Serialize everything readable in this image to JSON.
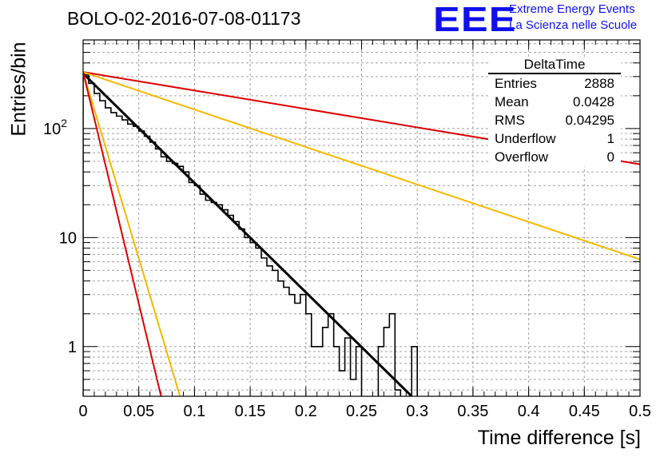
{
  "title": "BOLO-02-2016-07-08-01173",
  "logo": {
    "mark": "EEE",
    "line1": "Extreme Energy Events",
    "line2": "La Scienza nelle Scuole"
  },
  "stats": {
    "name": "DeltaTime",
    "rows": [
      {
        "label": "Entries",
        "value": "2888"
      },
      {
        "label": "Mean",
        "value": "0.0428"
      },
      {
        "label": "RMS",
        "value": "0.04295"
      },
      {
        "label": "Underflow",
        "value": "1"
      },
      {
        "label": "Overflow",
        "value": "0"
      }
    ]
  },
  "colors": {
    "histogram": "#000000",
    "fit": "#000000",
    "slow_exp": "#dd0000",
    "fast_exp": "#dd0000",
    "mid_exp": "#f5b800",
    "mid_fast_exp": "#f5b800",
    "grid": "#a0a0a0"
  },
  "chart_data": {
    "type": "line",
    "xlabel": "Time difference [s]",
    "ylabel": "Entries/bin",
    "xlim": [
      0,
      0.5
    ],
    "ylim": [
      0.35,
      650
    ],
    "yscale": "log",
    "grid": true,
    "x_ticks": [
      "0",
      "0.05",
      "0.1",
      "0.15",
      "0.2",
      "0.25",
      "0.3",
      "0.35",
      "0.4",
      "0.45",
      "0.5"
    ],
    "y_ticks": [
      "1",
      "10",
      "10^2"
    ],
    "histogram": {
      "bin_width": 0.005,
      "counts": [
        310,
        260,
        210,
        180,
        155,
        140,
        130,
        120,
        110,
        105,
        95,
        85,
        75,
        65,
        55,
        50,
        48,
        45,
        40,
        32,
        30,
        25,
        22,
        21,
        20,
        18,
        16,
        14,
        12,
        10,
        9,
        8,
        6.5,
        5.5,
        5,
        4,
        3.5,
        3,
        2.5,
        3,
        2,
        1,
        1,
        1.5,
        2,
        1,
        0.6,
        1.2,
        0.5,
        1,
        0.3,
        0.3,
        0.3,
        1,
        1.5,
        2,
        0.4,
        0.3,
        0.3,
        1,
        0.3,
        0.3,
        0.3,
        0.3,
        0.3
      ]
    },
    "series": [
      {
        "style": "black",
        "x": [
          0,
          0.295
        ],
        "y": [
          320,
          0.35
        ]
      },
      {
        "style": "red",
        "x": [
          0,
          0.5
        ],
        "y": [
          330,
          47
        ]
      },
      {
        "style": "orange",
        "x": [
          0,
          0.5
        ],
        "y": [
          330,
          6.3
        ]
      },
      {
        "style": "orange",
        "x": [
          0,
          0.087
        ],
        "y": [
          330,
          0.35
        ]
      },
      {
        "style": "red",
        "x": [
          0,
          0.07
        ],
        "y": [
          330,
          0.35
        ]
      }
    ]
  }
}
